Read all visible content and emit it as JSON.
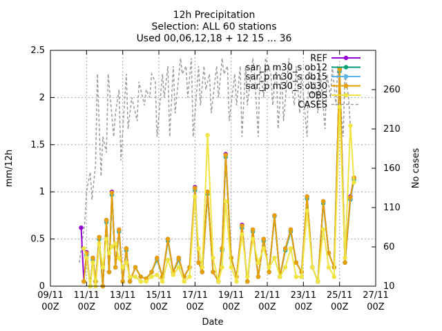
{
  "title": [
    "12h Precipitation",
    "Selection: ALL     60 stations",
    "Used 00,06,12,18 + 12 15 ... 36"
  ],
  "chart_data": {
    "type": "line",
    "xlabel": "Date",
    "ylabel": "mm/12h",
    "y2label": "No cases",
    "x_ticks": [
      [
        "09/11",
        "00Z"
      ],
      [
        "11/11",
        "00Z"
      ],
      [
        "13/11",
        "00Z"
      ],
      [
        "15/11",
        "00Z"
      ],
      [
        "17/11",
        "00Z"
      ],
      [
        "19/11",
        "00Z"
      ],
      [
        "21/11",
        "00Z"
      ],
      [
        "23/11",
        "00Z"
      ],
      [
        "25/11",
        "00Z"
      ],
      [
        "27/11",
        "00Z"
      ]
    ],
    "xlim_days": [
      9,
      27
    ],
    "ylim": [
      0,
      2.5
    ],
    "y_ticks": [
      "0",
      "0.5",
      "1",
      "1.5",
      "2",
      "2.5"
    ],
    "y2lim": [
      10,
      310
    ],
    "y2_ticks": [
      "10",
      "60",
      "110",
      "160",
      "210",
      "260"
    ],
    "grid": true,
    "legend_position": "top-right",
    "series": [
      {
        "name": "REF",
        "color": "#9400d3",
        "marker": "circle",
        "style": "solid",
        "x": [
          10.7,
          10.85,
          11.0,
          11.2,
          11.35,
          11.5,
          11.7,
          11.9,
          12.1,
          12.25,
          12.4,
          12.6,
          12.8,
          13.0,
          13.2,
          13.4,
          13.7,
          14.0,
          14.3,
          14.6,
          14.9,
          15.2,
          15.5,
          15.8,
          16.1,
          16.4,
          16.7,
          17.0,
          17.2,
          17.4,
          17.7,
          18.0,
          18.3,
          18.5,
          18.7,
          19.0,
          19.3,
          19.6,
          19.9,
          20.2,
          20.5,
          20.8,
          21.1,
          21.4,
          21.7,
          22.0,
          22.3,
          22.6,
          22.9,
          23.2,
          23.5,
          23.8,
          24.1,
          24.4,
          24.7,
          25.0,
          25.3,
          25.6,
          25.8
        ],
        "values": [
          0.62,
          0.05,
          0.36,
          0.0,
          0.3,
          0.05,
          0.52,
          0.0,
          0.7,
          0.15,
          1.0,
          0.2,
          0.6,
          0.05,
          0.4,
          0.05,
          0.2,
          0.1,
          0.08,
          0.15,
          0.3,
          0.1,
          0.5,
          0.15,
          0.3,
          0.1,
          0.2,
          1.05,
          0.25,
          0.15,
          1.0,
          0.15,
          0.05,
          0.4,
          1.4,
          0.3,
          0.1,
          0.65,
          0.05,
          0.6,
          0.1,
          0.5,
          0.15,
          0.75,
          0.1,
          0.4,
          0.6,
          0.25,
          0.15,
          0.95,
          0.2,
          0.05,
          0.9,
          0.35,
          0.2,
          2.3,
          0.25,
          0.95,
          1.15
        ]
      },
      {
        "name": "sar_p m30_s ob12",
        "color": "#009e73",
        "marker": "circle",
        "style": "solid",
        "x": [
          10.85,
          11.0,
          11.2,
          11.35,
          11.5,
          11.7,
          11.9,
          12.1,
          12.25,
          12.4,
          12.6,
          12.8,
          13.0,
          13.2,
          13.4,
          13.7,
          14.0,
          14.3,
          14.6,
          14.9,
          15.2,
          15.5,
          15.8,
          16.1,
          16.4,
          16.7,
          17.0,
          17.2,
          17.4,
          17.7,
          18.0,
          18.3,
          18.5,
          18.7,
          19.0,
          19.3,
          19.6,
          19.9,
          20.2,
          20.5,
          20.8,
          21.1,
          21.4,
          21.7,
          22.0,
          22.3,
          22.6,
          22.9,
          23.2,
          23.5,
          23.8,
          24.1,
          24.4,
          24.7,
          25.0,
          25.3,
          25.6,
          25.8
        ],
        "values": [
          0.05,
          0.33,
          0.0,
          0.28,
          0.05,
          0.5,
          0.0,
          0.68,
          0.15,
          0.97,
          0.2,
          0.58,
          0.05,
          0.38,
          0.05,
          0.2,
          0.1,
          0.08,
          0.15,
          0.28,
          0.1,
          0.48,
          0.15,
          0.28,
          0.1,
          0.2,
          1.02,
          0.25,
          0.15,
          0.98,
          0.15,
          0.05,
          0.38,
          1.37,
          0.3,
          0.1,
          0.62,
          0.05,
          0.58,
          0.1,
          0.48,
          0.15,
          0.74,
          0.1,
          0.38,
          0.58,
          0.25,
          0.15,
          0.93,
          0.2,
          0.05,
          0.88,
          0.35,
          0.2,
          2.28,
          0.25,
          0.92,
          1.13
        ]
      },
      {
        "name": "sar_p m30_s ob15",
        "color": "#56b4e9",
        "marker": "circle",
        "style": "solid",
        "x": [
          10.85,
          11.0,
          11.2,
          11.35,
          11.5,
          11.7,
          11.9,
          12.1,
          12.25,
          12.4,
          12.6,
          12.8,
          13.0,
          13.2,
          13.4,
          13.7,
          14.0,
          14.3,
          14.6,
          14.9,
          15.2,
          15.5,
          15.8,
          16.1,
          16.4,
          16.7,
          17.0,
          17.2,
          17.4,
          17.7,
          18.0,
          18.3,
          18.5,
          18.7,
          19.0,
          19.3,
          19.6,
          19.9,
          20.2,
          20.5,
          20.8,
          21.1,
          21.4,
          21.7,
          22.0,
          22.3,
          22.6,
          22.9,
          23.2,
          23.5,
          23.8,
          24.1,
          24.4,
          24.7,
          25.0,
          25.3,
          25.6,
          25.8
        ],
        "values": [
          0.05,
          0.34,
          0.0,
          0.29,
          0.05,
          0.51,
          0.0,
          0.69,
          0.15,
          0.98,
          0.2,
          0.59,
          0.05,
          0.39,
          0.05,
          0.2,
          0.1,
          0.08,
          0.15,
          0.29,
          0.1,
          0.49,
          0.15,
          0.29,
          0.1,
          0.2,
          1.03,
          0.25,
          0.15,
          0.99,
          0.15,
          0.05,
          0.39,
          1.38,
          0.3,
          0.1,
          0.63,
          0.05,
          0.59,
          0.1,
          0.49,
          0.15,
          0.74,
          0.1,
          0.39,
          0.59,
          0.25,
          0.15,
          0.94,
          0.2,
          0.05,
          0.89,
          0.35,
          0.2,
          2.29,
          0.25,
          0.93,
          1.14
        ]
      },
      {
        "name": "sar_p m30_s ob30",
        "color": "#e69f00",
        "marker": "circle",
        "style": "solid",
        "x": [
          10.85,
          11.0,
          11.2,
          11.35,
          11.5,
          11.7,
          11.9,
          12.1,
          12.25,
          12.4,
          12.6,
          12.8,
          13.0,
          13.2,
          13.4,
          13.7,
          14.0,
          14.3,
          14.6,
          14.9,
          15.2,
          15.5,
          15.8,
          16.1,
          16.4,
          16.7,
          17.0,
          17.2,
          17.4,
          17.7,
          18.0,
          18.3,
          18.5,
          18.7,
          19.0,
          19.3,
          19.6,
          19.9,
          20.2,
          20.5,
          20.8,
          21.1,
          21.4,
          21.7,
          22.0,
          22.3,
          22.6,
          22.9,
          23.2,
          23.5,
          23.8,
          24.1,
          24.4,
          24.7,
          25.0,
          25.3,
          25.6,
          25.8
        ],
        "values": [
          0.05,
          0.35,
          0.0,
          0.3,
          0.05,
          0.52,
          0.0,
          0.7,
          0.15,
          0.99,
          0.2,
          0.6,
          0.05,
          0.4,
          0.05,
          0.2,
          0.1,
          0.08,
          0.15,
          0.3,
          0.1,
          0.5,
          0.15,
          0.3,
          0.1,
          0.2,
          1.04,
          0.25,
          0.15,
          1.0,
          0.15,
          0.05,
          0.4,
          1.39,
          0.3,
          0.1,
          0.64,
          0.05,
          0.6,
          0.1,
          0.5,
          0.15,
          0.75,
          0.1,
          0.4,
          0.6,
          0.25,
          0.15,
          0.95,
          0.2,
          0.05,
          0.9,
          0.35,
          0.2,
          2.3,
          0.25,
          0.94,
          1.15
        ]
      },
      {
        "name": "OBS",
        "color": "#f0e442",
        "marker": "circle",
        "style": "solid",
        "x": [
          10.85,
          11.0,
          11.2,
          11.35,
          11.5,
          11.7,
          11.9,
          12.1,
          12.25,
          12.4,
          12.6,
          12.8,
          13.0,
          13.2,
          13.4,
          13.7,
          14.0,
          14.3,
          14.6,
          14.9,
          15.2,
          15.5,
          15.8,
          16.1,
          16.4,
          16.7,
          17.0,
          17.2,
          17.4,
          17.7,
          18.0,
          18.3,
          18.5,
          18.7,
          19.0,
          19.3,
          19.6,
          19.9,
          20.2,
          20.5,
          20.8,
          21.1,
          21.4,
          21.7,
          22.0,
          22.3,
          22.6,
          22.9,
          23.2,
          23.5,
          23.8,
          24.1,
          24.4,
          24.7,
          25.0,
          25.3,
          25.6,
          25.8
        ],
        "values": [
          0.4,
          0.3,
          0.0,
          0.25,
          0.0,
          0.45,
          0.2,
          0.5,
          0.35,
          0.42,
          0.45,
          0.3,
          0.2,
          0.25,
          0.1,
          0.1,
          0.05,
          0.05,
          0.1,
          0.12,
          0.05,
          0.28,
          0.12,
          0.2,
          0.05,
          0.1,
          0.95,
          0.4,
          0.2,
          1.6,
          0.3,
          0.05,
          0.2,
          0.9,
          0.2,
          0.05,
          0.55,
          0.1,
          0.5,
          0.25,
          0.4,
          0.2,
          0.3,
          0.1,
          0.2,
          0.4,
          0.1,
          0.1,
          0.8,
          0.2,
          0.05,
          0.6,
          0.2,
          0.1,
          1.9,
          0.3,
          1.7,
          1.1
        ]
      },
      {
        "name": "CASES",
        "color": "#999999",
        "marker": "none",
        "style": "dashed",
        "axis": "y2",
        "x": [
          10.6,
          10.9,
          11.0,
          11.2,
          11.3,
          11.5,
          11.6,
          11.8,
          11.9,
          12.1,
          12.2,
          12.5,
          12.6,
          12.8,
          12.9,
          13.2,
          13.3,
          13.5,
          13.6,
          13.8,
          13.9,
          14.2,
          14.3,
          14.5,
          14.6,
          14.8,
          14.9,
          15.2,
          15.3,
          15.5,
          15.6,
          15.8,
          15.9,
          16.2,
          16.3,
          16.5,
          16.6,
          16.8,
          16.9,
          17.2,
          17.3,
          17.5,
          17.6,
          17.8,
          17.9,
          18.2,
          18.3,
          18.5,
          18.6,
          18.8,
          18.9,
          19.2,
          19.3,
          19.5,
          19.6,
          19.8,
          19.9,
          20.2,
          20.3,
          20.5,
          20.6,
          20.8,
          20.9,
          21.2,
          21.3,
          21.5,
          21.6,
          21.8,
          21.9,
          22.2,
          22.3,
          22.5,
          22.6,
          22.8,
          22.9,
          23.2,
          23.3,
          23.5,
          23.6,
          23.8,
          23.9,
          24.2,
          24.3,
          24.5,
          24.6,
          24.8,
          24.9,
          25.2,
          25.3,
          25.5,
          25.6
        ],
        "values": [
          40,
          90,
          130,
          155,
          120,
          165,
          280,
          150,
          200,
          180,
          280,
          200,
          230,
          260,
          170,
          280,
          210,
          250,
          240,
          220,
          270,
          240,
          260,
          250,
          280,
          270,
          200,
          280,
          250,
          290,
          200,
          290,
          230,
          300,
          280,
          290,
          250,
          300,
          200,
          290,
          240,
          290,
          260,
          280,
          230,
          290,
          250,
          300,
          280,
          290,
          220,
          280,
          240,
          290,
          200,
          290,
          240,
          300,
          280,
          200,
          290,
          250,
          300,
          280,
          240,
          290,
          210,
          280,
          220,
          300,
          270,
          240,
          290,
          230,
          280,
          200,
          290,
          250,
          280,
          230,
          290,
          210,
          280,
          250,
          290,
          240,
          290,
          200,
          280,
          250,
          210
        ]
      }
    ]
  }
}
